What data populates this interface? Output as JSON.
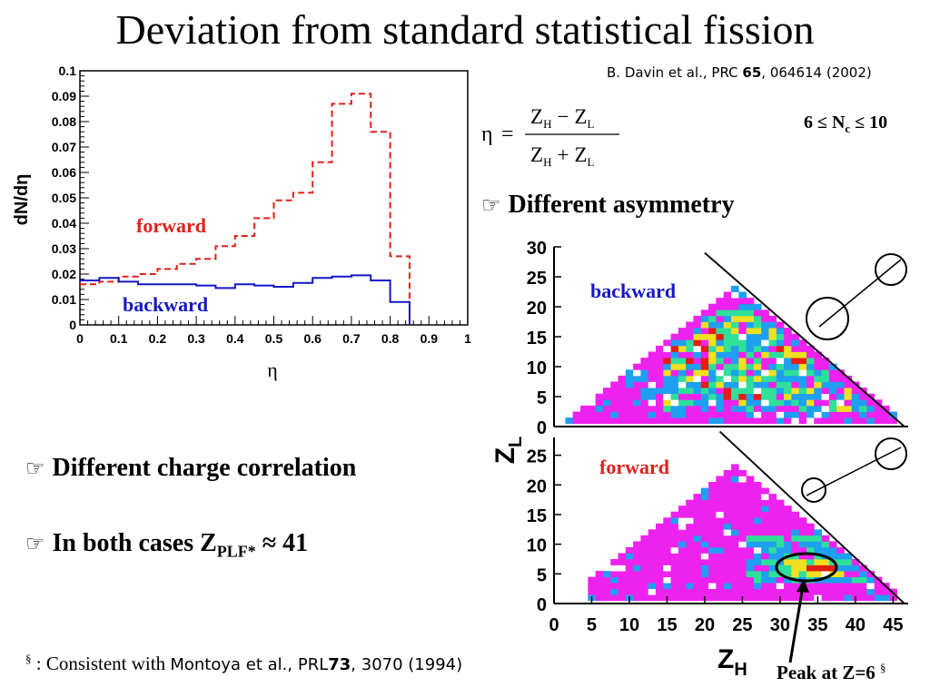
{
  "slide": {
    "title": "Deviation from standard statistical fission",
    "citation_prefix": "B. Davin et al., PRC ",
    "citation_volume": "65",
    "citation_suffix": ", 064614 (2002)",
    "formula": {
      "lhs": "η",
      "equals": "=",
      "num_a": "Z",
      "num_a_sub": "H",
      "num_op": "−",
      "num_b": "Z",
      "num_b_sub": "L",
      "den_a": "Z",
      "den_a_sub": "H",
      "den_op": "+",
      "den_b": "Z",
      "den_b_sub": "L"
    },
    "nc_range": {
      "left": "6 ≤  N",
      "sub": "c",
      "right": " ≤ 10"
    },
    "bullet_asymmetry": "Different asymmetry",
    "bullet_charge": "Different charge correlation",
    "bullet_plf": {
      "prefix": "In both cases Z",
      "sub": "PLF*",
      "suffix": " ≈ 41"
    },
    "footnote": {
      "mark": "§",
      "text": " : Consistent with ",
      "ref_prefix": "Montoya et al., PRL",
      "ref_volume": "73",
      "ref_suffix": ", 3070 (1994)"
    },
    "peak_label": {
      "text": "Peak at Z=6 ",
      "mark": "§"
    },
    "bullet_symbol": "☞"
  },
  "chart_data": [
    {
      "type": "line",
      "xlabel": "η",
      "ylabel": "dN/dη",
      "xlim": [
        0,
        1
      ],
      "ylim": [
        0,
        0.1
      ],
      "xticks": [
        "0",
        "0.1",
        "0.2",
        "0.3",
        "0.4",
        "0.5",
        "0.6",
        "0.7",
        "0.8",
        "0.9",
        "1"
      ],
      "yticks": [
        "0",
        "0.01",
        "0.02",
        "0.03",
        "0.04",
        "0.05",
        "0.06",
        "0.07",
        "0.08",
        "0.09",
        "0.1"
      ],
      "bin_edges": [
        0,
        0.05,
        0.1,
        0.15,
        0.2,
        0.25,
        0.3,
        0.35,
        0.4,
        0.45,
        0.5,
        0.55,
        0.6,
        0.65,
        0.7,
        0.75,
        0.8,
        0.85
      ],
      "series": [
        {
          "name": "forward",
          "color": "#e0201a",
          "dash": true,
          "values": [
            0.016,
            0.017,
            0.019,
            0.02,
            0.022,
            0.024,
            0.026,
            0.031,
            0.035,
            0.042,
            0.049,
            0.052,
            0.064,
            0.087,
            0.091,
            0.076,
            0.027
          ]
        },
        {
          "name": "backward",
          "color": "#1616c8",
          "dash": false,
          "values": [
            0.0175,
            0.0185,
            0.017,
            0.016,
            0.016,
            0.016,
            0.0155,
            0.0145,
            0.016,
            0.0155,
            0.015,
            0.0165,
            0.0185,
            0.019,
            0.0195,
            0.0175,
            0.009
          ]
        }
      ]
    },
    {
      "type": "heatmap",
      "xlabel": "Z",
      "xlabel_sub": "H",
      "ylabel": "Z",
      "ylabel_sub": "L",
      "xlim": [
        0,
        47
      ],
      "ylim": [
        0,
        30
      ],
      "xticks": [
        "0",
        "5",
        "10",
        "15",
        "20",
        "25",
        "30",
        "35",
        "40",
        "45"
      ],
      "yticks_top": [
        "0",
        "5",
        "10",
        "15",
        "20",
        "25",
        "30"
      ],
      "yticks_bottom": [
        "0",
        "5",
        "10",
        "15",
        "20",
        "25"
      ],
      "panels": [
        {
          "name": "backward",
          "label_color": "#1616c8"
        },
        {
          "name": "forward",
          "label_color": "#e0201a"
        }
      ],
      "line": {
        "x0": 20,
        "y0": 29,
        "x1": 46.5,
        "y1": 0
      },
      "peak_zl": 6,
      "colors": {
        "low": "#ee22ee",
        "mid": "#1f9ff0",
        "green": "#2ee09a",
        "high": "#f0e020",
        "peak": "#e41c14"
      }
    }
  ]
}
